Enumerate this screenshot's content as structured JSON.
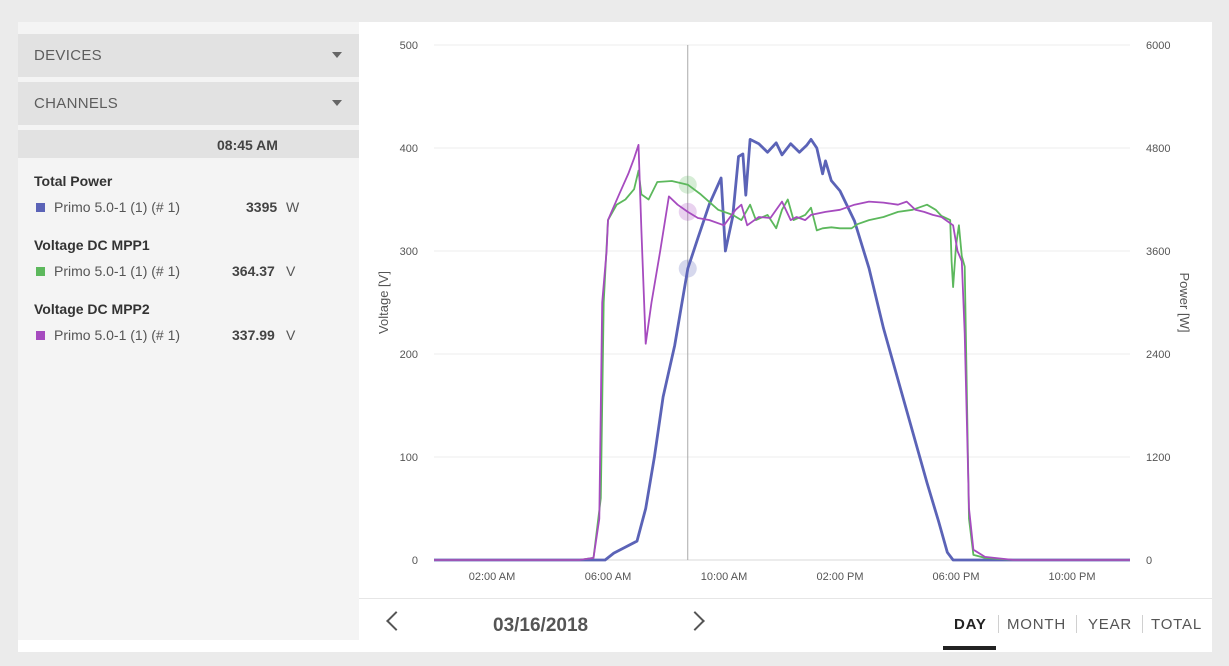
{
  "sidebar": {
    "devices_label": "DEVICES",
    "channels_label": "CHANNELS",
    "time": "08:45 AM",
    "groups": [
      {
        "title": "Total Power",
        "device": "Primo 5.0-1 (1) (# 1)",
        "value": "3395",
        "unit": "W",
        "color": "#5b63b7"
      },
      {
        "title": "Voltage DC MPP1",
        "device": "Primo 5.0-1 (1) (# 1)",
        "value": "364.37",
        "unit": "V",
        "color": "#5cb85c"
      },
      {
        "title": "Voltage DC MPP2",
        "device": "Primo 5.0-1 (1) (# 1)",
        "value": "337.99",
        "unit": "V",
        "color": "#a64bbf"
      }
    ]
  },
  "footer": {
    "date": "03/16/2018",
    "tabs": [
      "DAY",
      "MONTH",
      "YEAR",
      "TOTAL"
    ],
    "active_tab": "DAY"
  },
  "chart_data": {
    "type": "line",
    "xlabel": "",
    "ylabel": "Voltage [V]",
    "ylabel_right": "Power [W]",
    "x_ticks": [
      "02:00 AM",
      "06:00 AM",
      "10:00 AM",
      "02:00 PM",
      "06:00 PM",
      "10:00 PM"
    ],
    "y_ticks_left": [
      "0",
      "100",
      "200",
      "300",
      "400",
      "500"
    ],
    "y_ticks_right": [
      "0",
      "1200",
      "2400",
      "3600",
      "4800",
      "6000"
    ],
    "ylim_left": [
      0,
      500
    ],
    "ylim_right": [
      0,
      6000
    ],
    "xlim_hours": [
      0,
      24
    ],
    "grid": true,
    "cursor_hour": 8.75,
    "series": [
      {
        "axis": "right",
        "color": "#5b63b7",
        "points": [
          [
            0,
            0
          ],
          [
            5.5,
            0
          ],
          [
            5.9,
            0
          ],
          [
            6.2,
            80
          ],
          [
            6.6,
            150
          ],
          [
            7.0,
            220
          ],
          [
            7.3,
            600
          ],
          [
            7.6,
            1200
          ],
          [
            7.9,
            1900
          ],
          [
            8.3,
            2500
          ],
          [
            8.75,
            3395
          ],
          [
            9.1,
            3750
          ],
          [
            9.5,
            4150
          ],
          [
            9.9,
            4450
          ],
          [
            10.05,
            3600
          ],
          [
            10.3,
            4000
          ],
          [
            10.5,
            4700
          ],
          [
            10.65,
            4730
          ],
          [
            10.75,
            4250
          ],
          [
            10.9,
            4900
          ],
          [
            11.2,
            4850
          ],
          [
            11.5,
            4750
          ],
          [
            11.8,
            4860
          ],
          [
            12.0,
            4720
          ],
          [
            12.3,
            4850
          ],
          [
            12.6,
            4750
          ],
          [
            12.85,
            4830
          ],
          [
            13.0,
            4900
          ],
          [
            13.2,
            4800
          ],
          [
            13.4,
            4500
          ],
          [
            13.5,
            4650
          ],
          [
            13.7,
            4420
          ],
          [
            14.0,
            4300
          ],
          [
            14.5,
            3950
          ],
          [
            15.0,
            3400
          ],
          [
            15.5,
            2700
          ],
          [
            16.0,
            2100
          ],
          [
            16.5,
            1500
          ],
          [
            17.0,
            900
          ],
          [
            17.4,
            450
          ],
          [
            17.7,
            90
          ],
          [
            17.9,
            0
          ],
          [
            18.5,
            0
          ],
          [
            24,
            0
          ]
        ]
      },
      {
        "axis": "left",
        "color": "#5cb85c",
        "points": [
          [
            0,
            0
          ],
          [
            5.0,
            0
          ],
          [
            5.5,
            2
          ],
          [
            5.75,
            60
          ],
          [
            5.85,
            250
          ],
          [
            6.0,
            330
          ],
          [
            6.3,
            345
          ],
          [
            6.6,
            350
          ],
          [
            6.9,
            360
          ],
          [
            7.05,
            378
          ],
          [
            7.15,
            355
          ],
          [
            7.4,
            350
          ],
          [
            7.7,
            367
          ],
          [
            8.2,
            368
          ],
          [
            8.75,
            364.37
          ],
          [
            9.2,
            355
          ],
          [
            9.8,
            340
          ],
          [
            10.3,
            335
          ],
          [
            10.6,
            330
          ],
          [
            10.9,
            345
          ],
          [
            11.1,
            330
          ],
          [
            11.5,
            335
          ],
          [
            11.8,
            322
          ],
          [
            12.0,
            340
          ],
          [
            12.2,
            350
          ],
          [
            12.4,
            330
          ],
          [
            12.8,
            335
          ],
          [
            13.0,
            342
          ],
          [
            13.2,
            320
          ],
          [
            13.4,
            322
          ],
          [
            13.7,
            323
          ],
          [
            14.0,
            322
          ],
          [
            14.4,
            322
          ],
          [
            14.6,
            326
          ],
          [
            15.0,
            330
          ],
          [
            15.5,
            333
          ],
          [
            16.0,
            338
          ],
          [
            16.5,
            340
          ],
          [
            17.0,
            345
          ],
          [
            17.3,
            340
          ],
          [
            17.5,
            334
          ],
          [
            17.8,
            330
          ],
          [
            17.85,
            290
          ],
          [
            17.9,
            265
          ],
          [
            18.0,
            305
          ],
          [
            18.1,
            325
          ],
          [
            18.2,
            295
          ],
          [
            18.3,
            285
          ],
          [
            18.45,
            40
          ],
          [
            18.6,
            5
          ],
          [
            19,
            2
          ],
          [
            20,
            0
          ],
          [
            24,
            0
          ]
        ]
      },
      {
        "axis": "left",
        "color": "#a64bbf",
        "points": [
          [
            0,
            0
          ],
          [
            5.0,
            0
          ],
          [
            5.5,
            2
          ],
          [
            5.7,
            40
          ],
          [
            5.8,
            250
          ],
          [
            5.95,
            300
          ],
          [
            6.0,
            330
          ],
          [
            6.15,
            340
          ],
          [
            6.4,
            356
          ],
          [
            6.7,
            375
          ],
          [
            6.9,
            390
          ],
          [
            7.05,
            403
          ],
          [
            7.15,
            320
          ],
          [
            7.3,
            210
          ],
          [
            7.5,
            250
          ],
          [
            7.8,
            300
          ],
          [
            8.1,
            353
          ],
          [
            8.4,
            345
          ],
          [
            8.75,
            337.99
          ],
          [
            9.1,
            332
          ],
          [
            9.5,
            330
          ],
          [
            10.0,
            325
          ],
          [
            10.4,
            340
          ],
          [
            10.6,
            345
          ],
          [
            10.8,
            325
          ],
          [
            11.2,
            333
          ],
          [
            11.6,
            332
          ],
          [
            12.0,
            348
          ],
          [
            12.3,
            330
          ],
          [
            12.5,
            333
          ],
          [
            12.8,
            330
          ],
          [
            13.0,
            335
          ],
          [
            13.5,
            338
          ],
          [
            14.0,
            340
          ],
          [
            14.5,
            345
          ],
          [
            15.0,
            348
          ],
          [
            15.5,
            347
          ],
          [
            16.0,
            345
          ],
          [
            16.3,
            348
          ],
          [
            16.6,
            340
          ],
          [
            16.9,
            338
          ],
          [
            17.2,
            335
          ],
          [
            17.5,
            333
          ],
          [
            17.9,
            325
          ],
          [
            18.05,
            300
          ],
          [
            18.2,
            290
          ],
          [
            18.3,
            220
          ],
          [
            18.45,
            50
          ],
          [
            18.6,
            10
          ],
          [
            19.0,
            3
          ],
          [
            20,
            0
          ],
          [
            24,
            0
          ]
        ]
      }
    ]
  }
}
